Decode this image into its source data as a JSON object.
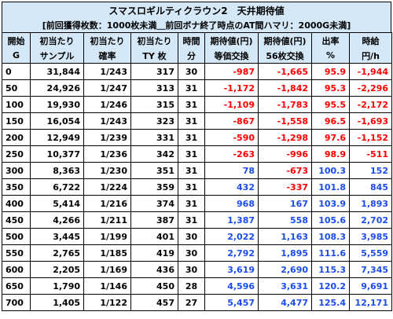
{
  "title": "スマスロギルティクラウン2　天井期待値",
  "subtitle": "[前回獲得枚数：1000枚未満＿前回ボナ終了時点のAT間ハマリ：2000G未満]",
  "headers": {
    "row1": [
      "開始",
      "初当たり",
      "初当たり",
      "初当たり",
      "時間",
      "期待値(円)",
      "期待値(円)",
      "出率",
      "時給"
    ],
    "row2": [
      "G",
      "サンプル",
      "確率",
      "TY 枚",
      "分",
      "等価交換",
      "56枚交換",
      "%",
      "円/h"
    ]
  },
  "rows": [
    {
      "g": "0",
      "sample": "31,844",
      "prob": "1/243",
      "ty": "317",
      "min": "30",
      "eq": "-987",
      "ex56": "-1,665",
      "rate": "95.9",
      "hourly": "-1,944"
    },
    {
      "g": "50",
      "sample": "24,926",
      "prob": "1/247",
      "ty": "313",
      "min": "31",
      "eq": "-1,172",
      "ex56": "-1,842",
      "rate": "95.3",
      "hourly": "-2,296"
    },
    {
      "g": "100",
      "sample": "19,930",
      "prob": "1/246",
      "ty": "315",
      "min": "31",
      "eq": "-1,109",
      "ex56": "-1,783",
      "rate": "95.5",
      "hourly": "-2,172"
    },
    {
      "g": "150",
      "sample": "16,054",
      "prob": "1/243",
      "ty": "323",
      "min": "31",
      "eq": "-867",
      "ex56": "-1,558",
      "rate": "96.5",
      "hourly": "-1,693"
    },
    {
      "g": "200",
      "sample": "12,949",
      "prob": "1/239",
      "ty": "331",
      "min": "31",
      "eq": "-590",
      "ex56": "-1,298",
      "rate": "97.6",
      "hourly": "-1,152"
    },
    {
      "g": "250",
      "sample": "10,377",
      "prob": "1/236",
      "ty": "342",
      "min": "31",
      "eq": "-263",
      "ex56": "-996",
      "rate": "98.9",
      "hourly": "-511"
    },
    {
      "g": "300",
      "sample": "8,363",
      "prob": "1/230",
      "ty": "351",
      "min": "31",
      "eq": "78",
      "ex56": "-673",
      "rate": "100.3",
      "hourly": "152"
    },
    {
      "g": "350",
      "sample": "6,722",
      "prob": "1/224",
      "ty": "359",
      "min": "31",
      "eq": "432",
      "ex56": "-337",
      "rate": "101.8",
      "hourly": "845"
    },
    {
      "g": "400",
      "sample": "5,414",
      "prob": "1/216",
      "ty": "374",
      "min": "31",
      "eq": "968",
      "ex56": "167",
      "rate": "103.9",
      "hourly": "1,893"
    },
    {
      "g": "450",
      "sample": "4,266",
      "prob": "1/211",
      "ty": "387",
      "min": "31",
      "eq": "1,387",
      "ex56": "558",
      "rate": "105.6",
      "hourly": "2,702"
    },
    {
      "g": "500",
      "sample": "3,445",
      "prob": "1/199",
      "ty": "401",
      "min": "30",
      "eq": "2,022",
      "ex56": "1,163",
      "rate": "108.3",
      "hourly": "3,985"
    },
    {
      "g": "550",
      "sample": "2,765",
      "prob": "1/185",
      "ty": "419",
      "min": "30",
      "eq": "2,792",
      "ex56": "1,895",
      "rate": "111.6",
      "hourly": "5,559"
    },
    {
      "g": "600",
      "sample": "2,205",
      "prob": "1/169",
      "ty": "436",
      "min": "30",
      "eq": "3,619",
      "ex56": "2,690",
      "rate": "115.3",
      "hourly": "7,345"
    },
    {
      "g": "650",
      "sample": "1,790",
      "prob": "1/146",
      "ty": "450",
      "min": "28",
      "eq": "4,596",
      "ex56": "3,631",
      "rate": "120.2",
      "hourly": "9,691"
    },
    {
      "g": "700",
      "sample": "1,405",
      "prob": "1/122",
      "ty": "457",
      "min": "27",
      "eq": "5,457",
      "ex56": "4,477",
      "rate": "125.4",
      "hourly": "12,171"
    }
  ],
  "colors": {
    "header_bg": "#d5e8f7",
    "negative": "#ff0000",
    "positive": "#1a4cf0",
    "border": "#000000"
  }
}
